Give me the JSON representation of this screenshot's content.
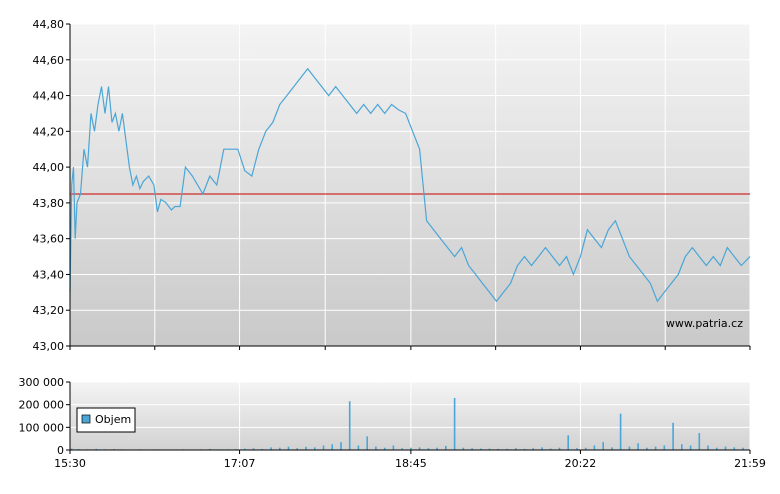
{
  "chart_data": [
    {
      "type": "line",
      "title": "",
      "xlabel": "",
      "ylabel": "",
      "ylim": [
        43.0,
        44.8
      ],
      "yticks": [
        "44,80",
        "44,60",
        "44,40",
        "44,20",
        "44,00",
        "43,80",
        "43,60",
        "43,40",
        "43,20",
        "43,00"
      ],
      "ytick_values": [
        44.8,
        44.6,
        44.4,
        44.2,
        44.0,
        43.8,
        43.6,
        43.4,
        43.2,
        43.0
      ],
      "xlim": [
        "15:30",
        "21:59"
      ],
      "grid": true,
      "reference_line": {
        "value": 43.85,
        "color": "#cc0000"
      },
      "watermark": "www.patria.cz",
      "series": [
        {
          "color": "#4aa6d6",
          "points": [
            [
              "15:30",
              43.3
            ],
            [
              "15:31",
              43.9
            ],
            [
              "15:32",
              44.0
            ],
            [
              "15:33",
              43.6
            ],
            [
              "15:34",
              43.8
            ],
            [
              "15:36",
              43.85
            ],
            [
              "15:38",
              44.1
            ],
            [
              "15:40",
              44.0
            ],
            [
              "15:42",
              44.3
            ],
            [
              "15:44",
              44.2
            ],
            [
              "15:46",
              44.35
            ],
            [
              "15:48",
              44.45
            ],
            [
              "15:50",
              44.3
            ],
            [
              "15:52",
              44.45
            ],
            [
              "15:54",
              44.25
            ],
            [
              "15:56",
              44.3
            ],
            [
              "15:58",
              44.2
            ],
            [
              "16:00",
              44.3
            ],
            [
              "16:02",
              44.15
            ],
            [
              "16:04",
              44.0
            ],
            [
              "16:06",
              43.9
            ],
            [
              "16:08",
              43.95
            ],
            [
              "16:10",
              43.88
            ],
            [
              "16:12",
              43.92
            ],
            [
              "16:15",
              43.95
            ],
            [
              "16:18",
              43.9
            ],
            [
              "16:20",
              43.75
            ],
            [
              "16:22",
              43.82
            ],
            [
              "16:25",
              43.8
            ],
            [
              "16:28",
              43.76
            ],
            [
              "16:30",
              43.78
            ],
            [
              "16:33",
              43.78
            ],
            [
              "16:36",
              44.0
            ],
            [
              "16:40",
              43.95
            ],
            [
              "16:43",
              43.9
            ],
            [
              "16:46",
              43.85
            ],
            [
              "16:50",
              43.95
            ],
            [
              "16:54",
              43.9
            ],
            [
              "16:58",
              44.1
            ],
            [
              "17:02",
              44.1
            ],
            [
              "17:06",
              44.1
            ],
            [
              "17:10",
              43.98
            ],
            [
              "17:14",
              43.95
            ],
            [
              "17:18",
              44.1
            ],
            [
              "17:22",
              44.2
            ],
            [
              "17:26",
              44.25
            ],
            [
              "17:30",
              44.35
            ],
            [
              "17:34",
              44.4
            ],
            [
              "17:38",
              44.45
            ],
            [
              "17:42",
              44.5
            ],
            [
              "17:46",
              44.55
            ],
            [
              "17:50",
              44.5
            ],
            [
              "17:54",
              44.45
            ],
            [
              "17:58",
              44.4
            ],
            [
              "18:02",
              44.45
            ],
            [
              "18:06",
              44.4
            ],
            [
              "18:10",
              44.35
            ],
            [
              "18:14",
              44.3
            ],
            [
              "18:18",
              44.35
            ],
            [
              "18:22",
              44.3
            ],
            [
              "18:26",
              44.35
            ],
            [
              "18:30",
              44.3
            ],
            [
              "18:34",
              44.35
            ],
            [
              "18:38",
              44.32
            ],
            [
              "18:42",
              44.3
            ],
            [
              "18:46",
              44.2
            ],
            [
              "18:50",
              44.1
            ],
            [
              "18:54",
              43.7
            ],
            [
              "18:58",
              43.65
            ],
            [
              "19:02",
              43.6
            ],
            [
              "19:06",
              43.55
            ],
            [
              "19:10",
              43.5
            ],
            [
              "19:14",
              43.55
            ],
            [
              "19:18",
              43.45
            ],
            [
              "19:22",
              43.4
            ],
            [
              "19:26",
              43.35
            ],
            [
              "19:30",
              43.3
            ],
            [
              "19:34",
              43.25
            ],
            [
              "19:38",
              43.3
            ],
            [
              "19:42",
              43.35
            ],
            [
              "19:46",
              43.45
            ],
            [
              "19:50",
              43.5
            ],
            [
              "19:54",
              43.45
            ],
            [
              "19:58",
              43.5
            ],
            [
              "20:02",
              43.55
            ],
            [
              "20:06",
              43.5
            ],
            [
              "20:10",
              43.45
            ],
            [
              "20:14",
              43.5
            ],
            [
              "20:18",
              43.4
            ],
            [
              "20:22",
              43.5
            ],
            [
              "20:26",
              43.65
            ],
            [
              "20:30",
              43.6
            ],
            [
              "20:34",
              43.55
            ],
            [
              "20:38",
              43.65
            ],
            [
              "20:42",
              43.7
            ],
            [
              "20:46",
              43.6
            ],
            [
              "20:50",
              43.5
            ],
            [
              "20:54",
              43.45
            ],
            [
              "20:58",
              43.4
            ],
            [
              "21:02",
              43.35
            ],
            [
              "21:06",
              43.25
            ],
            [
              "21:10",
              43.3
            ],
            [
              "21:14",
              43.35
            ],
            [
              "21:18",
              43.4
            ],
            [
              "21:22",
              43.5
            ],
            [
              "21:26",
              43.55
            ],
            [
              "21:30",
              43.5
            ],
            [
              "21:34",
              43.45
            ],
            [
              "21:38",
              43.5
            ],
            [
              "21:42",
              43.45
            ],
            [
              "21:46",
              43.55
            ],
            [
              "21:50",
              43.5
            ],
            [
              "21:54",
              43.45
            ],
            [
              "21:59",
              43.5
            ]
          ]
        }
      ]
    },
    {
      "type": "bar",
      "title": "",
      "xlabel": "",
      "ylabel": "",
      "ylim": [
        0,
        300000
      ],
      "yticks": [
        "300 000",
        "200 000",
        "100 000",
        "0"
      ],
      "ytick_values": [
        300000,
        200000,
        100000,
        0
      ],
      "xticks": [
        "15:30",
        "17:07",
        "18:45",
        "20:22",
        "21:59"
      ],
      "xlim": [
        "15:30",
        "21:59"
      ],
      "grid": true,
      "legend": {
        "label": "Objem",
        "position": "bottom-left",
        "color": "#4aa6d6"
      },
      "series": [
        {
          "name": "Objem",
          "color": "#4aa6d6",
          "points": [
            [
              "15:31",
              6000
            ],
            [
              "15:35",
              4000
            ],
            [
              "15:40",
              3000
            ],
            [
              "15:45",
              5000
            ],
            [
              "15:50",
              3000
            ],
            [
              "15:55",
              4000
            ],
            [
              "16:00",
              3000
            ],
            [
              "16:05",
              2000
            ],
            [
              "16:10",
              3000
            ],
            [
              "16:15",
              2000
            ],
            [
              "16:20",
              3000
            ],
            [
              "16:25",
              2000
            ],
            [
              "16:30",
              2000
            ],
            [
              "16:35",
              3000
            ],
            [
              "16:40",
              2000
            ],
            [
              "16:45",
              3000
            ],
            [
              "16:50",
              5000
            ],
            [
              "16:55",
              3000
            ],
            [
              "17:00",
              3000
            ],
            [
              "17:05",
              4000
            ],
            [
              "17:10",
              6000
            ],
            [
              "17:15",
              8000
            ],
            [
              "17:20",
              5000
            ],
            [
              "17:25",
              12000
            ],
            [
              "17:30",
              10000
            ],
            [
              "17:35",
              15000
            ],
            [
              "17:40",
              8000
            ],
            [
              "17:45",
              14000
            ],
            [
              "17:50",
              12000
            ],
            [
              "17:55",
              20000
            ],
            [
              "18:00",
              25000
            ],
            [
              "18:05",
              35000
            ],
            [
              "18:10",
              215000
            ],
            [
              "18:15",
              20000
            ],
            [
              "18:20",
              60000
            ],
            [
              "18:25",
              15000
            ],
            [
              "18:30",
              10000
            ],
            [
              "18:35",
              20000
            ],
            [
              "18:40",
              8000
            ],
            [
              "18:45",
              10000
            ],
            [
              "18:50",
              12000
            ],
            [
              "18:55",
              8000
            ],
            [
              "19:00",
              10000
            ],
            [
              "19:05",
              18000
            ],
            [
              "19:10",
              230000
            ],
            [
              "19:15",
              10000
            ],
            [
              "19:20",
              8000
            ],
            [
              "19:25",
              6000
            ],
            [
              "19:30",
              6000
            ],
            [
              "19:35",
              5000
            ],
            [
              "19:40",
              5000
            ],
            [
              "19:45",
              8000
            ],
            [
              "19:50",
              5000
            ],
            [
              "19:55",
              8000
            ],
            [
              "20:00",
              12000
            ],
            [
              "20:05",
              6000
            ],
            [
              "20:10",
              10000
            ],
            [
              "20:15",
              65000
            ],
            [
              "20:20",
              8000
            ],
            [
              "20:25",
              10000
            ],
            [
              "20:30",
              20000
            ],
            [
              "20:35",
              35000
            ],
            [
              "20:40",
              12000
            ],
            [
              "20:45",
              160000
            ],
            [
              "20:50",
              15000
            ],
            [
              "20:55",
              30000
            ],
            [
              "21:00",
              10000
            ],
            [
              "21:05",
              15000
            ],
            [
              "21:10",
              20000
            ],
            [
              "21:15",
              120000
            ],
            [
              "21:20",
              25000
            ],
            [
              "21:25",
              20000
            ],
            [
              "21:30",
              75000
            ],
            [
              "21:35",
              20000
            ],
            [
              "21:40",
              10000
            ],
            [
              "21:45",
              15000
            ],
            [
              "21:50",
              12000
            ],
            [
              "21:55",
              10000
            ]
          ]
        }
      ]
    }
  ]
}
